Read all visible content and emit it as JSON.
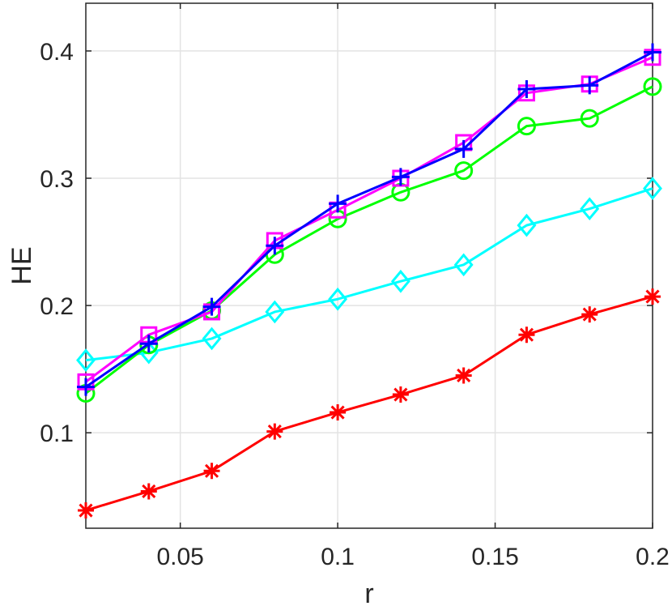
{
  "chart_data": {
    "type": "line",
    "title": "",
    "xlabel": "r",
    "ylabel": "HE",
    "xlim": [
      0.02,
      0.2
    ],
    "ylim": [
      0.025,
      0.4375
    ],
    "xticks": [
      0.05,
      0.1,
      0.15,
      0.2
    ],
    "xtick_labels": [
      "0.05",
      "0.1",
      "0.15",
      "0.2"
    ],
    "yticks": [
      0.1,
      0.2,
      0.3,
      0.4
    ],
    "ytick_labels": [
      "0.1",
      "0.2",
      "0.3",
      "0.4"
    ],
    "grid": true,
    "legend": "none",
    "x": [
      0.02,
      0.04,
      0.06,
      0.08,
      0.1,
      0.12,
      0.14,
      0.16,
      0.18,
      0.2
    ],
    "series": [
      {
        "color": "#ff0000",
        "marker": "asterisk",
        "values": [
          0.039,
          0.054,
          0.07,
          0.101,
          0.116,
          0.13,
          0.145,
          0.177,
          0.193,
          0.207
        ]
      },
      {
        "color": "#00ffff",
        "marker": "diamond",
        "values": [
          0.157,
          0.163,
          0.174,
          0.195,
          0.205,
          0.219,
          0.232,
          0.263,
          0.276,
          0.292
        ]
      },
      {
        "color": "#00ff00",
        "marker": "circle",
        "values": [
          0.131,
          0.169,
          0.196,
          0.24,
          0.268,
          0.289,
          0.306,
          0.341,
          0.347,
          0.372
        ]
      },
      {
        "color": "#ff00ff",
        "marker": "square",
        "values": [
          0.14,
          0.177,
          0.195,
          0.251,
          0.275,
          0.3,
          0.328,
          0.367,
          0.374,
          0.395
        ]
      },
      {
        "color": "#0000ff",
        "marker": "plus",
        "values": [
          0.136,
          0.17,
          0.199,
          0.247,
          0.28,
          0.301,
          0.323,
          0.37,
          0.373,
          0.399
        ]
      }
    ]
  }
}
